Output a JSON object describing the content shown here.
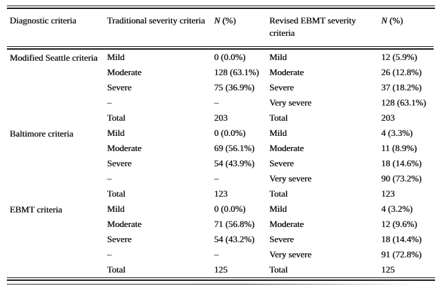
{
  "table": {
    "columns": [
      {
        "label": "Diagnostic criteria"
      },
      {
        "label": "Traditional severity criteria"
      },
      {
        "n": "N",
        "pct": " (%)"
      },
      {
        "label": "Revised EBMT severity criteria"
      },
      {
        "n": "N",
        "pct": " (%)"
      }
    ],
    "groups": [
      {
        "name": "Modified Seattle criteria",
        "rows": [
          {
            "trad": "Mild",
            "trad_n": "0 (0.0%)",
            "rev": "Mild",
            "rev_n": "12 (5.9%)"
          },
          {
            "trad": "Moderate",
            "trad_n": "128 (63.1%)",
            "rev": "Moderate",
            "rev_n": "26 (12.8%)"
          },
          {
            "trad": "Severe",
            "trad_n": "75 (36.9%)",
            "rev": "Severe",
            "rev_n": "37 (18.2%)"
          },
          {
            "trad": "–",
            "trad_n": "–",
            "rev": "Very severe",
            "rev_n": "128 (63.1%)"
          },
          {
            "trad": "Total",
            "trad_n": "203",
            "rev": "Total",
            "rev_n": "203"
          }
        ]
      },
      {
        "name": "Baltimore criteria",
        "rows": [
          {
            "trad": "Mild",
            "trad_n": "0 (0.0%)",
            "rev": "Mild",
            "rev_n": "4 (3.3%)"
          },
          {
            "trad": "Moderate",
            "trad_n": "69 (56.1%)",
            "rev": "Moderate",
            "rev_n": "11 (8.9%)"
          },
          {
            "trad": "Severe",
            "trad_n": "54 (43.9%)",
            "rev": "Severe",
            "rev_n": "18 (14.6%)"
          },
          {
            "trad": "–",
            "trad_n": "–",
            "rev": "Very severe",
            "rev_n": "90 (73.2%)"
          },
          {
            "trad": "Total",
            "trad_n": "123",
            "rev": "Total",
            "rev_n": "123"
          }
        ]
      },
      {
        "name": "EBMT criteria",
        "rows": [
          {
            "trad": "Mild",
            "trad_n": "0 (0.0%)",
            "rev": "Mild",
            "rev_n": "4 (3.2%)"
          },
          {
            "trad": "Moderate",
            "trad_n": "71 (56.8%)",
            "rev": "Moderate",
            "rev_n": "12 (9.6%)"
          },
          {
            "trad": "Severe",
            "trad_n": "54 (43.2%)",
            "rev": "Severe",
            "rev_n": "18 (14.4%)"
          },
          {
            "trad": "–",
            "trad_n": "–",
            "rev": "Very severe",
            "rev_n": "91 (72.8%)"
          },
          {
            "trad": "Total",
            "trad_n": "125",
            "rev": "Total",
            "rev_n": "125"
          }
        ]
      }
    ]
  }
}
